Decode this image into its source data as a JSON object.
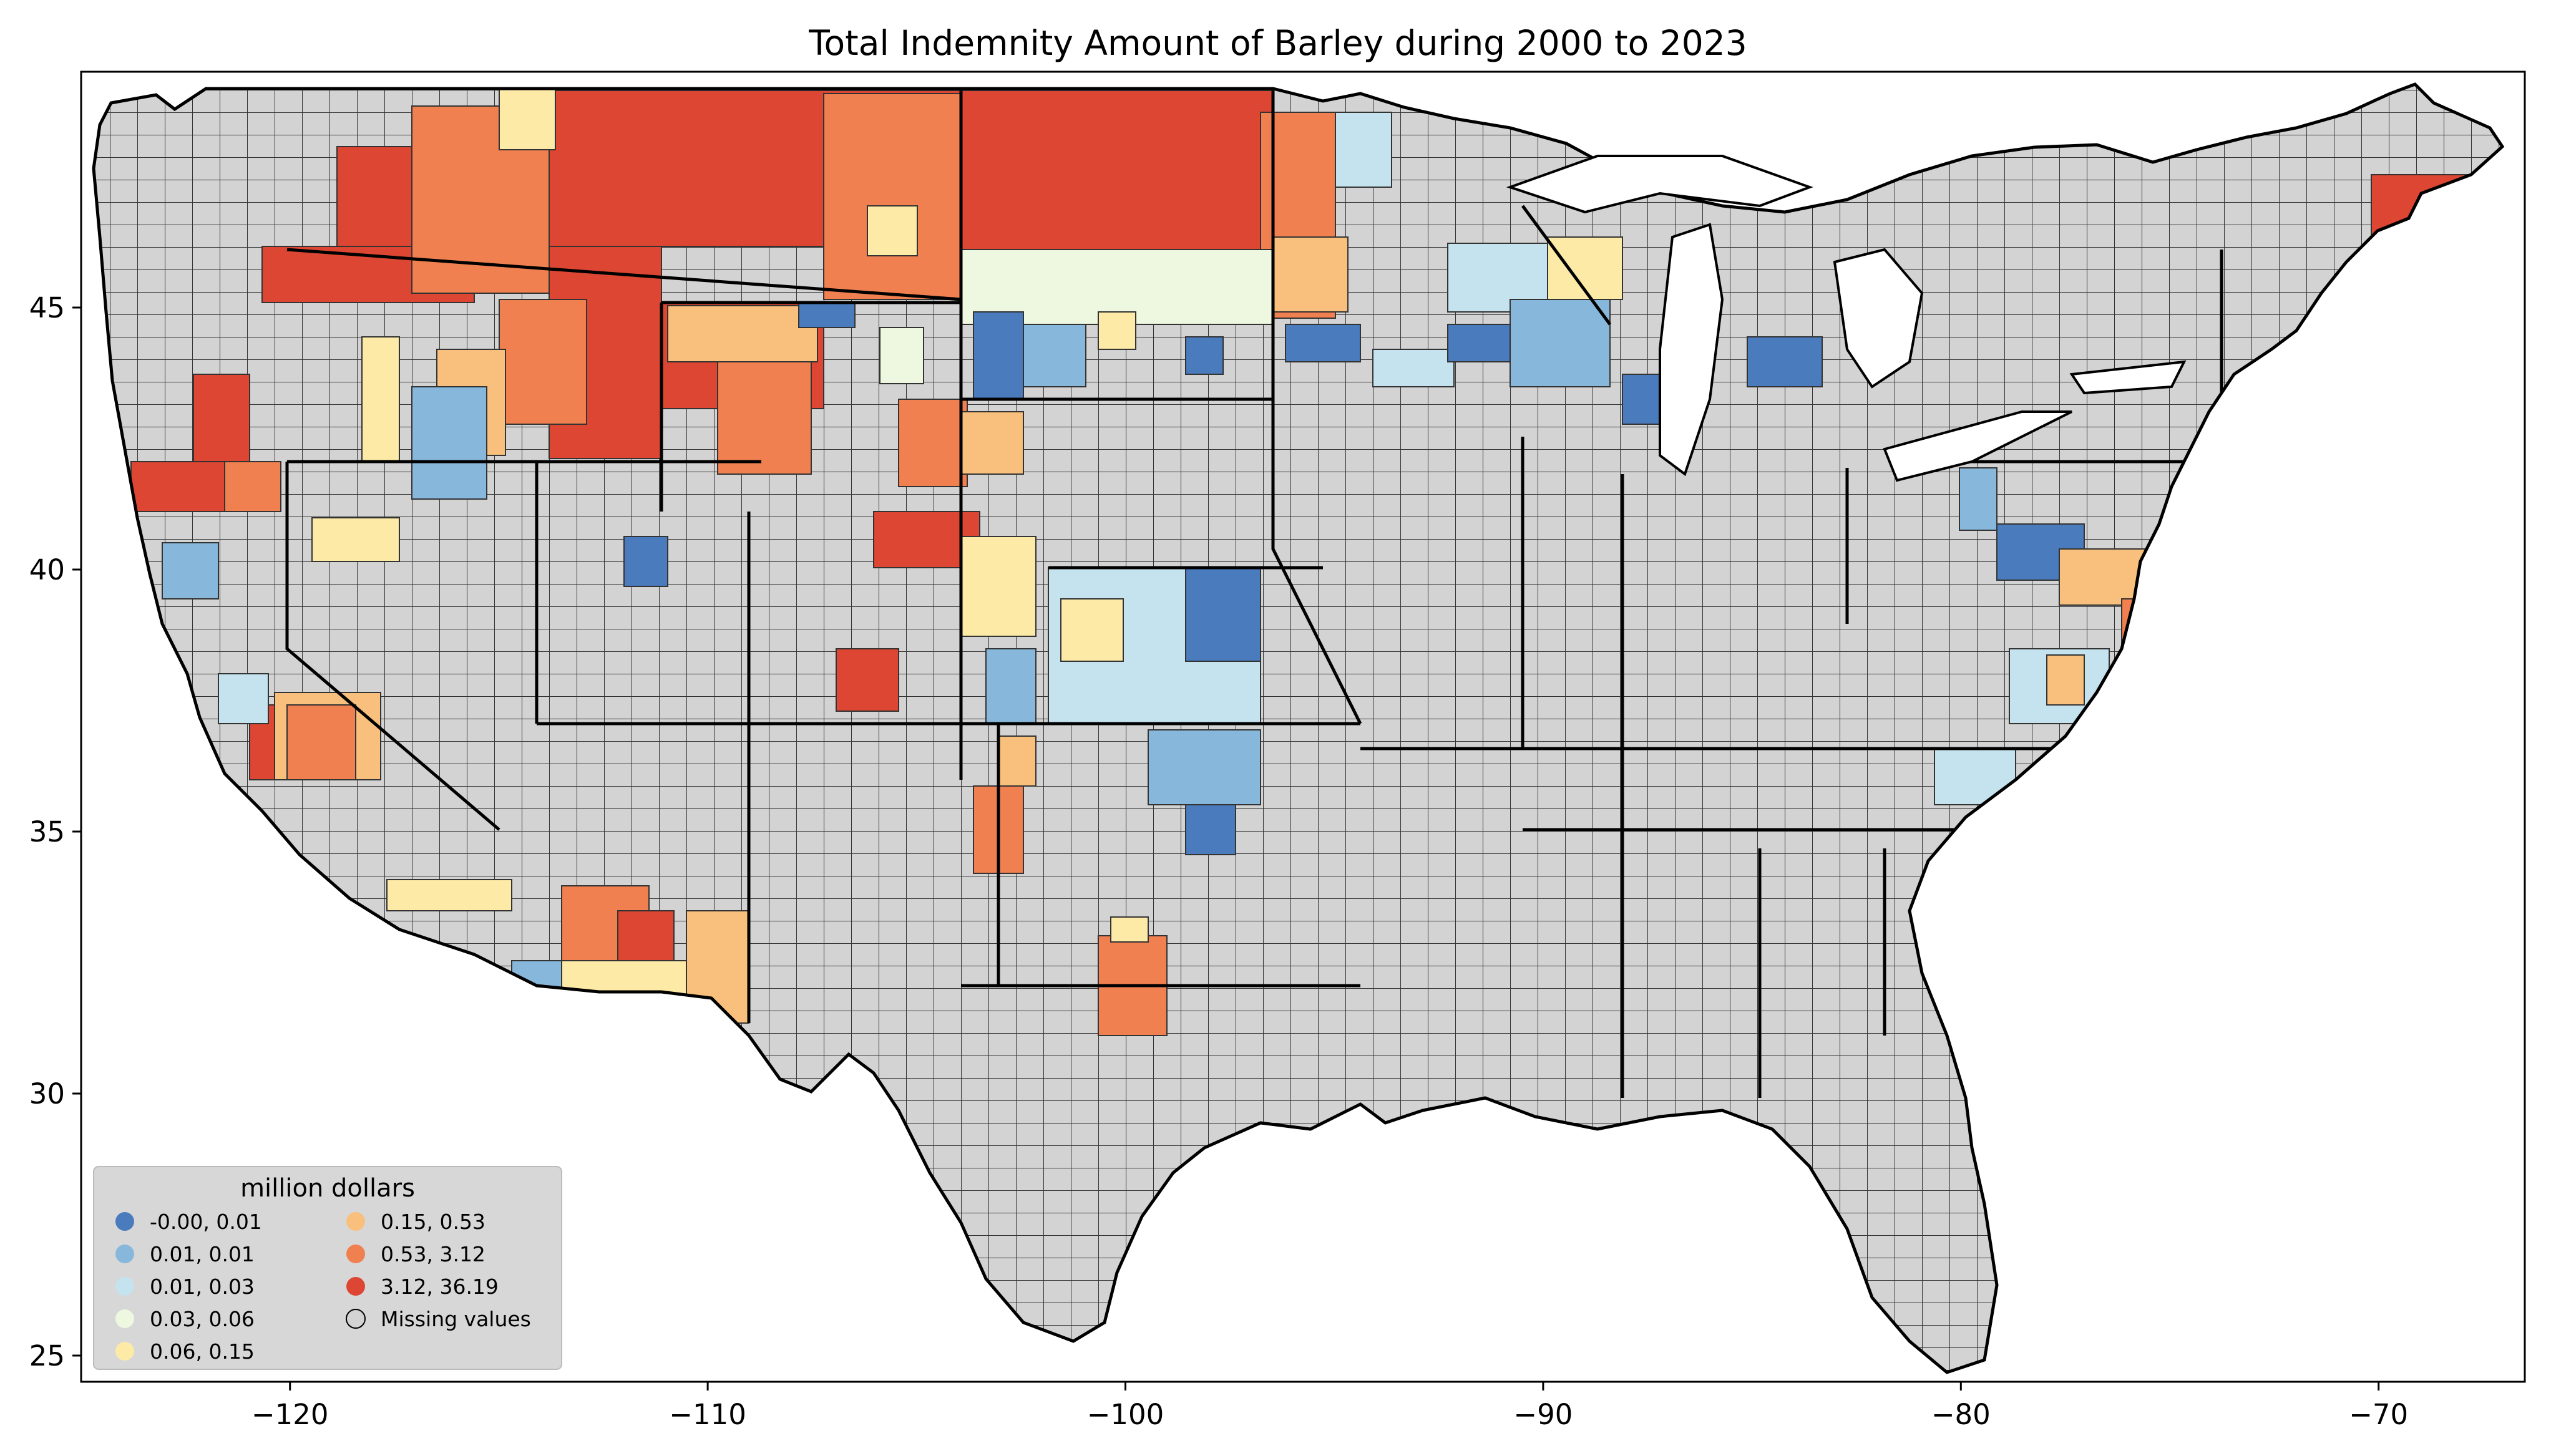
{
  "title": "Total Indemnity Amount of Barley during 2000 to 2023",
  "map": {
    "type": "choropleth",
    "region": "Contiguous United States, county level",
    "missing_color": "#d3d3d3",
    "x_ticks": [
      -120,
      -110,
      -100,
      -90,
      -80,
      -70
    ],
    "x_tick_labels": [
      "−120",
      "−110",
      "−100",
      "−90",
      "−80",
      "−70"
    ],
    "y_ticks": [
      25,
      30,
      35,
      40,
      45
    ],
    "y_tick_labels": [
      "25",
      "30",
      "35",
      "40",
      "45"
    ],
    "lon_range": [
      -125,
      -66.5
    ],
    "lat_range": [
      24.5,
      49.5
    ]
  },
  "legend": {
    "title": "million dollars",
    "placement": "lower-left",
    "items": [
      {
        "label": "-0.00,  0.01",
        "color": "#4a7bbd"
      },
      {
        "label": " 0.01,  0.01",
        "color": "#87b8dc"
      },
      {
        "label": " 0.01,  0.03",
        "color": "#c5e3ef"
      },
      {
        "label": " 0.03,  0.06",
        "color": "#eef7df"
      },
      {
        "label": " 0.06,  0.15",
        "color": "#fdeaa6"
      },
      {
        "label": " 0.15,  0.53",
        "color": "#f8c07c"
      },
      {
        "label": " 0.53,  3.12",
        "color": "#f08050"
      },
      {
        "label": " 3.12, 36.19",
        "color": "#dc4632"
      },
      {
        "label": "Missing values",
        "color": "#d3d3d3"
      }
    ]
  }
}
